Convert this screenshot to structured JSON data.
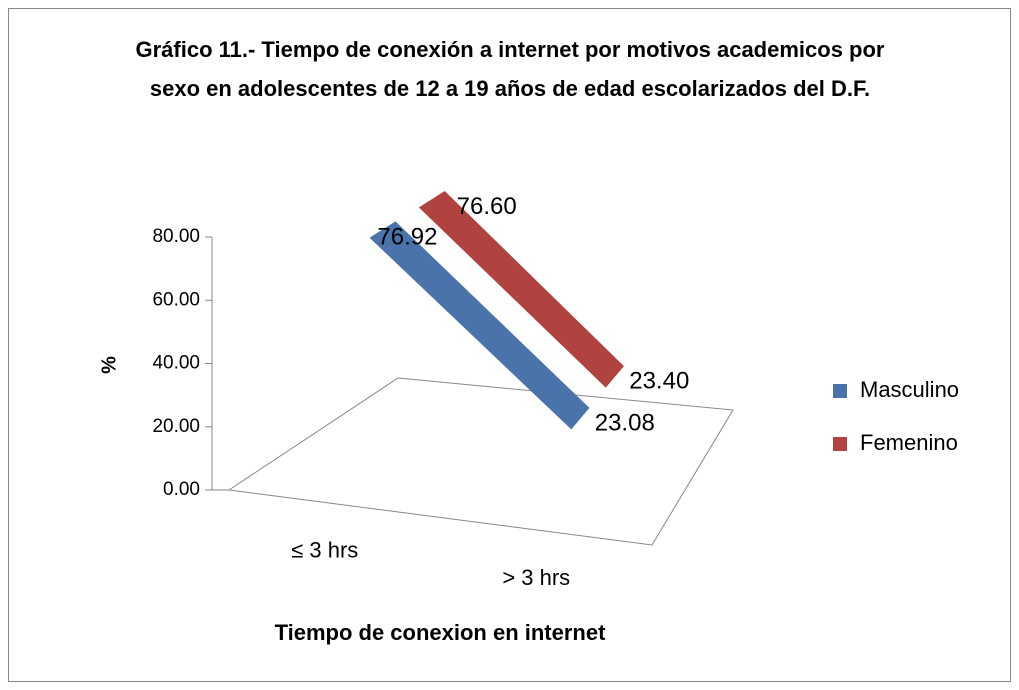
{
  "chart_data": {
    "type": "line",
    "three_d": true,
    "title": "Gráfico 11.- Tiempo de conexión a internet por motivos academicos por sexo en adolescentes de 12 a 19 años de edad escolarizados del D.F.",
    "x_label": "Tiempo de conexion en internet",
    "y_label": "%",
    "categories": [
      "≤ 3 hrs",
      "> 3 hrs"
    ],
    "series": [
      {
        "name": "Masculino",
        "color": "#4a72ab",
        "values": [
          76.92,
          23.08
        ],
        "value_labels": [
          "76.92",
          "23.08"
        ]
      },
      {
        "name": "Femenino",
        "color": "#b0423f",
        "values": [
          76.6,
          23.4
        ],
        "value_labels": [
          "76.60",
          "23.40"
        ]
      }
    ],
    "ylim": [
      0,
      80
    ],
    "yticks": [
      {
        "value": 0,
        "label": "0.00"
      },
      {
        "value": 20,
        "label": "20.00"
      },
      {
        "value": 40,
        "label": "40.00"
      },
      {
        "value": 60,
        "label": "60.00"
      },
      {
        "value": 80,
        "label": "80.00"
      }
    ],
    "grid": false,
    "legend": "right"
  }
}
